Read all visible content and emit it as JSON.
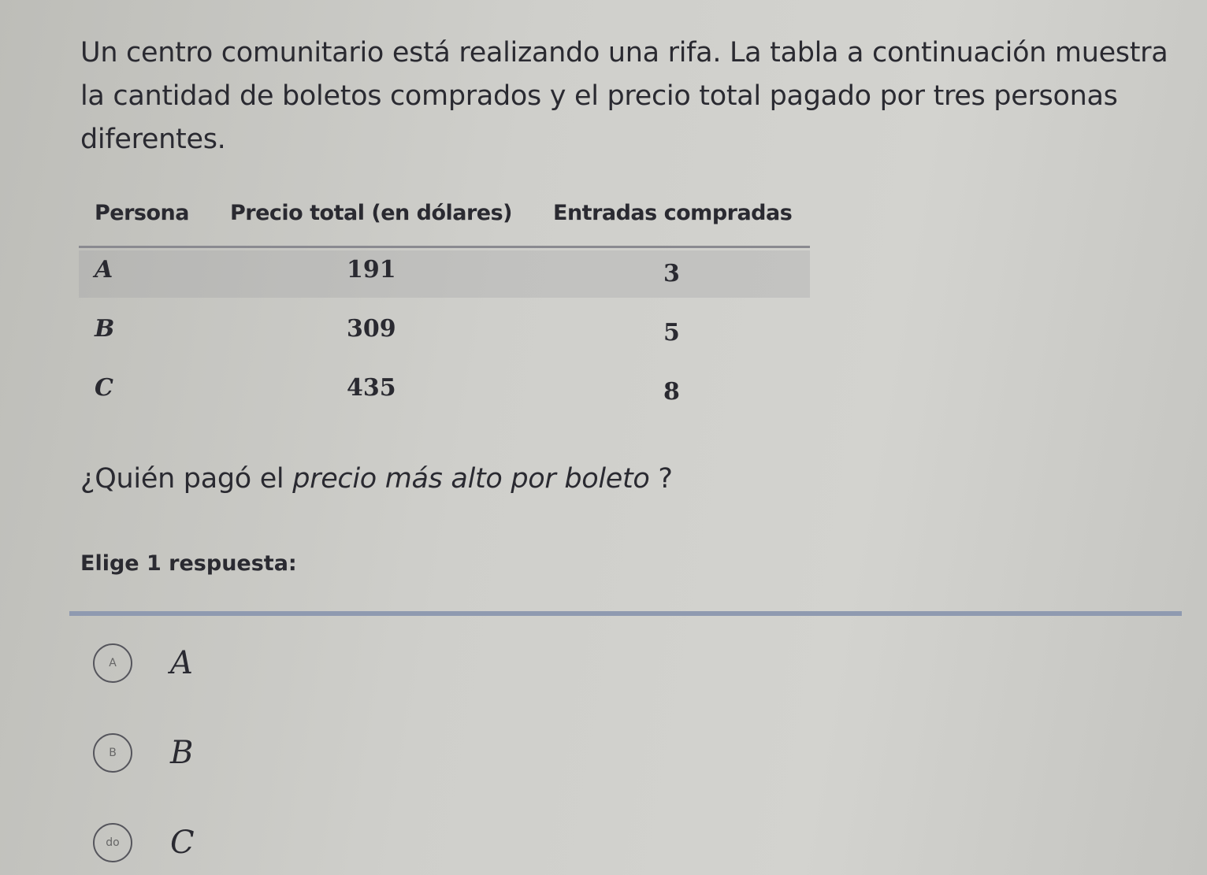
{
  "intro": "Un centro comunitario está realizando una rifa. La tabla a continuación muestra la cantidad de boletos comprados y el precio total pagado por tres personas diferentes.",
  "table": {
    "headers": [
      "Persona",
      "Precio total (en dólares)",
      "Entradas compradas"
    ],
    "rows": [
      {
        "persona": "A",
        "precio": "191",
        "entradas": "3"
      },
      {
        "persona": "B",
        "precio": "309",
        "entradas": "5"
      },
      {
        "persona": "C",
        "precio": "435",
        "entradas": "8"
      }
    ]
  },
  "question": {
    "pre": "¿Quién pagó el ",
    "emph": "precio más alto por boleto",
    "post": " ?"
  },
  "instruction": "Elige 1 respuesta:",
  "choices": [
    {
      "marker": "A",
      "label": "A"
    },
    {
      "marker": "B",
      "label": "B"
    },
    {
      "marker": "do",
      "label": "C"
    }
  ]
}
